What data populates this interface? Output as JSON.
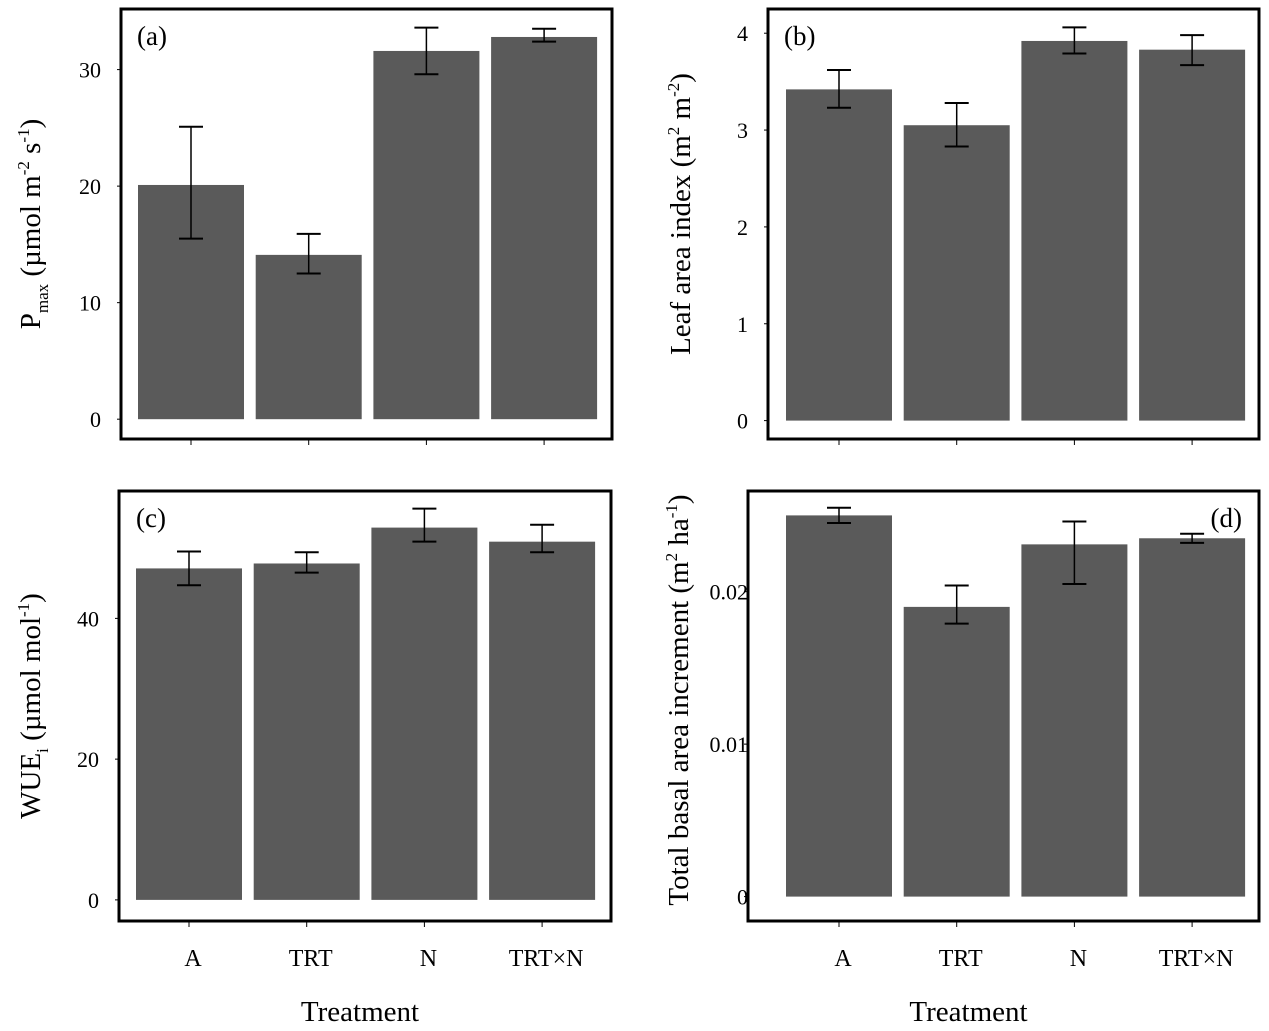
{
  "chart_data": [
    {
      "type": "bar",
      "panel_label": "(a)",
      "categories": [
        "A",
        "TRT",
        "N",
        "TRT×N"
      ],
      "values": [
        20.1,
        14.1,
        31.6,
        32.8
      ],
      "error_low": [
        15.5,
        12.5,
        29.6,
        32.4
      ],
      "error_high": [
        25.1,
        15.9,
        33.6,
        33.5
      ],
      "ylabel_main": "P",
      "ylabel_sub": "max",
      "ylabel_rest": " (µmol m",
      "ylabel_sup1": "-2",
      "ylabel_mid": " s",
      "ylabel_sup2": "-1",
      "ylabel_end": ")",
      "xlabel": "",
      "yticks": [
        0,
        10,
        20,
        30
      ],
      "ytick_labels": [
        "0",
        "10",
        "20",
        "30"
      ],
      "ylim": [
        -1.7,
        35.2
      ],
      "show_x_tick_labels": false,
      "label_position": "top-left",
      "grid": false
    },
    {
      "type": "bar",
      "panel_label": "(b)",
      "categories": [
        "A",
        "TRT",
        "N",
        "TRT×N"
      ],
      "values": [
        3.42,
        3.05,
        3.92,
        3.83
      ],
      "error_low": [
        3.23,
        2.83,
        3.79,
        3.67
      ],
      "error_high": [
        3.62,
        3.28,
        4.06,
        3.98
      ],
      "ylabel_main": "Leaf area index (m",
      "ylabel_sup1": "2",
      "ylabel_mid": " m",
      "ylabel_sup2": "-2",
      "ylabel_end": ")",
      "xlabel": "",
      "yticks": [
        0,
        1,
        2,
        3,
        4
      ],
      "ytick_labels": [
        "0",
        "1",
        "2",
        "3",
        "4"
      ],
      "ylim": [
        -0.19,
        4.25
      ],
      "show_x_tick_labels": false,
      "label_position": "top-left",
      "grid": false
    },
    {
      "type": "bar",
      "panel_label": "(c)",
      "categories": [
        "A",
        "TRT",
        "N",
        "TRT×N"
      ],
      "values": [
        47.1,
        47.8,
        52.9,
        50.9
      ],
      "error_low": [
        44.7,
        46.5,
        50.9,
        49.4
      ],
      "error_high": [
        49.5,
        49.4,
        55.6,
        53.3
      ],
      "ylabel_main": "WUE",
      "ylabel_sub": "i",
      "ylabel_rest": " (µmol mol",
      "ylabel_sup1": "-1",
      "ylabel_end": ")",
      "xlabel": "Treatment",
      "yticks": [
        0,
        20,
        40
      ],
      "ytick_labels": [
        "0",
        "20",
        "40"
      ],
      "ylim": [
        -3.0,
        58.1
      ],
      "show_x_tick_labels": true,
      "label_position": "top-left",
      "grid": false
    },
    {
      "type": "bar",
      "panel_label": "(d)",
      "categories": [
        "A",
        "TRT",
        "N",
        "TRT×N"
      ],
      "values": [
        0.025,
        0.019,
        0.0231,
        0.0235
      ],
      "error_low": [
        0.0245,
        0.0179,
        0.0205,
        0.0232
      ],
      "error_high": [
        0.0255,
        0.0204,
        0.0246,
        0.0238
      ],
      "ylabel_main": "Total basal area increment (m",
      "ylabel_sup1": "2",
      "ylabel_mid": " ha",
      "ylabel_sup2": "-1",
      "ylabel_end": ")",
      "xlabel": "Treatment",
      "yticks": [
        0,
        0.01,
        0.02
      ],
      "ytick_labels": [
        "0",
        "0.01",
        "0.02"
      ],
      "ylim": [
        -0.0016,
        0.0266
      ],
      "show_x_tick_labels": true,
      "label_position": "top-right",
      "grid": false
    }
  ]
}
